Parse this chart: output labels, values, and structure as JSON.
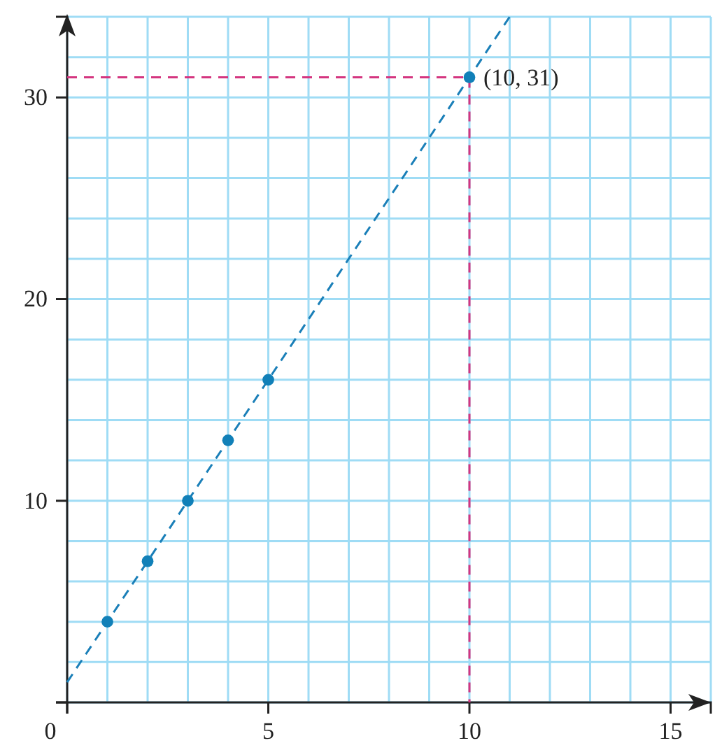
{
  "chart_data": {
    "type": "scatter",
    "xlim": [
      0,
      16
    ],
    "ylim": [
      0,
      34
    ],
    "xticks": [
      0,
      5,
      10,
      15
    ],
    "yticks": [
      {
        "value": 0,
        "label": null
      },
      10,
      20,
      30
    ],
    "grid": true,
    "marker": "circle",
    "series": [
      {
        "type": "line",
        "x": [
          0,
          11
        ],
        "values": [
          1,
          34
        ],
        "color": "#1a7fb8",
        "line_style": "dashed",
        "marker": "none"
      },
      {
        "type": "line",
        "x": [
          0,
          10,
          10
        ],
        "values": [
          31,
          31,
          0
        ],
        "color": "#d4357f",
        "line_style": "dashed",
        "marker": "none"
      },
      {
        "x": [
          1,
          2,
          3,
          4,
          5,
          10
        ],
        "values": [
          4,
          7,
          10,
          13,
          16,
          31
        ],
        "color": "#1180b8"
      }
    ],
    "annotations": [
      {
        "text": "(10, 31)",
        "x": 10,
        "y": 31
      }
    ]
  }
}
